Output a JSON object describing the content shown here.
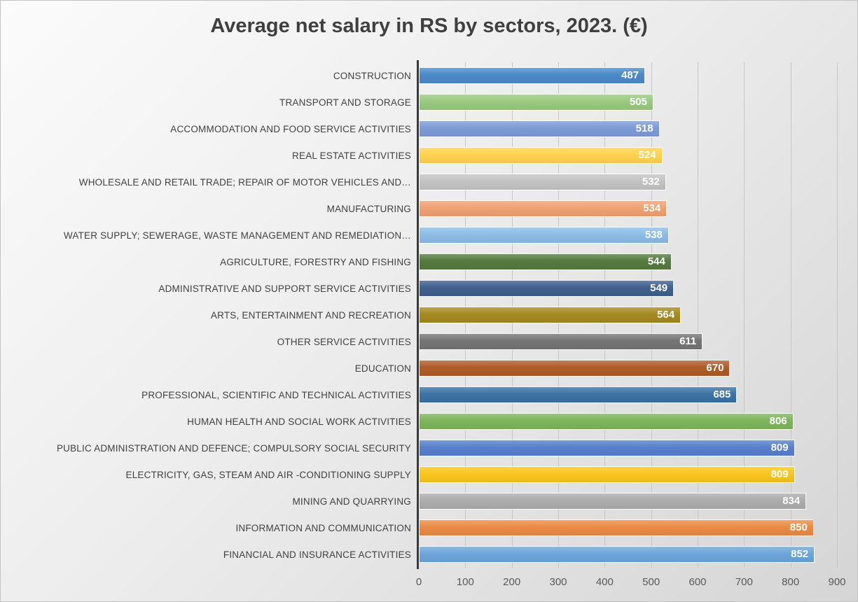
{
  "chart_data": {
    "type": "bar",
    "orientation": "horizontal",
    "title": "Average net salary in RS by sectors, 2023. (€)",
    "categories": [
      "CONSTRUCTION",
      "TRANSPORT AND STORAGE",
      "ACCOMMODATION AND FOOD SERVICE ACTIVITIES",
      "REAL ESTATE ACTIVITIES",
      "WHOLESALE AND RETAIL TRADE; REPAIR OF MOTOR VEHICLES AND…",
      "MANUFACTURING",
      "WATER SUPPLY; SEWERAGE, WASTE MANAGEMENT AND REMEDIATION…",
      "AGRICULTURE, FORESTRY AND FISHING",
      "ADMINISTRATIVE AND SUPPORT SERVICE ACTIVITIES",
      "ARTS, ENTERTAINMENT AND RECREATION",
      "OTHER SERVICE ACTIVITIES",
      "EDUCATION",
      "PROFESSIONAL, SCIENTIFIC AND TECHNICAL ACTIVITIES",
      "HUMAN HEALTH AND SOCIAL WORK ACTIVITIES",
      "PUBLIC ADMINISTRATION AND DEFENCE; COMPULSORY SOCIAL SECURITY",
      "ELECTRICITY, GAS, STEAM AND AIR -CONDITIONING SUPPLY",
      "MINING AND QUARRYING",
      "INFORMATION AND COMMUNICATION",
      "FINANCIAL AND INSURANCE ACTIVITIES"
    ],
    "values": [
      487,
      505,
      518,
      524,
      532,
      534,
      538,
      544,
      549,
      564,
      611,
      670,
      685,
      806,
      809,
      809,
      834,
      850,
      852
    ],
    "bar_colors": [
      "#4A8AC9",
      "#99CA80",
      "#7E9BD7",
      "#FFD24F",
      "#C3C3C3",
      "#F0A173",
      "#8CBCE5",
      "#567A40",
      "#40608E",
      "#A58A21",
      "#757575",
      "#AF5C27",
      "#3B72A5",
      "#7EB55B",
      "#577FCC",
      "#FAC51D",
      "#ACACAC",
      "#EA8B46",
      "#6CA5DA"
    ],
    "value_label_color": "#ffffff",
    "xlim": [
      0,
      900
    ],
    "x_ticks": [
      "0",
      "100",
      "200",
      "300",
      "400",
      "500",
      "600",
      "700",
      "800",
      "900"
    ],
    "grid": true,
    "legend": "none",
    "value_labels_position": "inside-end"
  }
}
